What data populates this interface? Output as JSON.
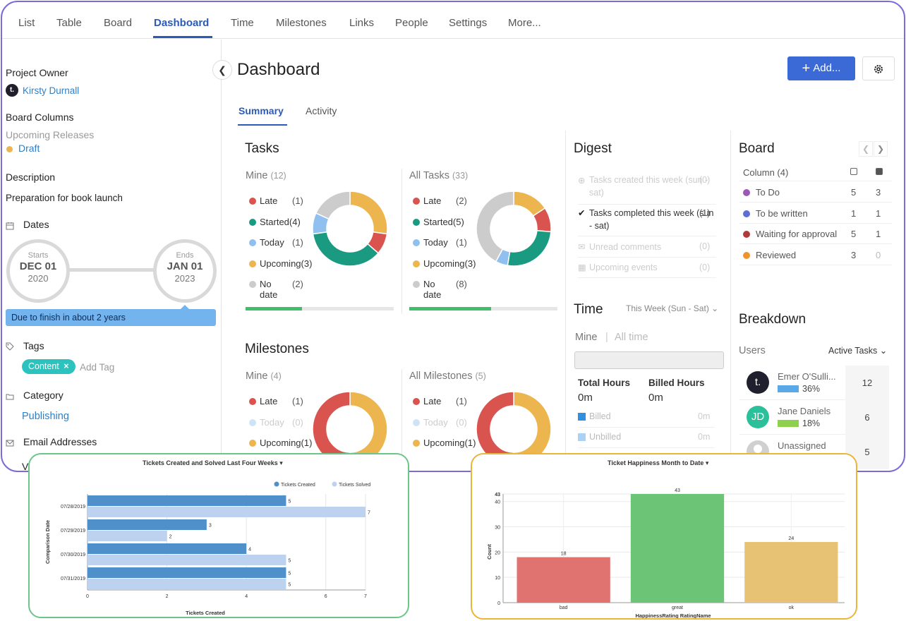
{
  "nav": {
    "tabs": [
      "List",
      "Table",
      "Board",
      "Dashboard",
      "Time",
      "Milestones",
      "Links",
      "People",
      "Settings",
      "More..."
    ],
    "active": "Dashboard"
  },
  "sidebar": {
    "project_owner_label": "Project Owner",
    "owner_name": "Kirsty Durnall",
    "board_columns_label": "Board Columns",
    "board_columns_value": "Upcoming Releases",
    "draft": "Draft",
    "description_label": "Description",
    "description": "Preparation for book launch",
    "dates_label": "Dates",
    "start": {
      "label": "Starts",
      "date": "DEC 01",
      "year": "2020"
    },
    "end": {
      "label": "Ends",
      "date": "JAN 01",
      "year": "2023"
    },
    "due_tooltip": "Due to finish in about 2 years",
    "tags_label": "Tags",
    "tag": "Content",
    "add_tag": "Add Tag",
    "category_label": "Category",
    "category": "Publishing",
    "email_label": "Email Addresses",
    "view_partial": "Vi"
  },
  "header": {
    "title": "Dashboard",
    "add_label": "Add...",
    "subtabs": [
      "Summary",
      "Activity"
    ]
  },
  "tasks": {
    "title": "Tasks",
    "mine": {
      "label": "Mine",
      "count": "(12)",
      "items": [
        {
          "label": "Late",
          "count": "(1)",
          "value": 1,
          "color": "#d9534f"
        },
        {
          "label": "Started",
          "count": "(4)",
          "value": 4,
          "color": "#1a9a80"
        },
        {
          "label": "Today",
          "count": "(1)",
          "value": 1,
          "color": "#8fc0f0"
        },
        {
          "label": "Upcoming",
          "count": "(3)",
          "value": 3,
          "color": "#ecb54e"
        },
        {
          "label": "No date",
          "count": "(2)",
          "value": 2,
          "color": "#cccccc"
        }
      ],
      "progress": 0.38
    },
    "all": {
      "label": "All Tasks",
      "count": "(33)",
      "items": [
        {
          "label": "Late",
          "count": "(2)",
          "value": 2,
          "color": "#d9534f"
        },
        {
          "label": "Started",
          "count": "(5)",
          "value": 5,
          "color": "#1a9a80"
        },
        {
          "label": "Today",
          "count": "(1)",
          "value": 1,
          "color": "#8fc0f0"
        },
        {
          "label": "Upcoming",
          "count": "(3)",
          "value": 3,
          "color": "#ecb54e"
        },
        {
          "label": "No date",
          "count": "(8)",
          "value": 8,
          "color": "#cccccc"
        }
      ],
      "progress": 0.55
    }
  },
  "milestones": {
    "title": "Milestones",
    "mine": {
      "label": "Mine",
      "count": "(4)",
      "items": [
        {
          "label": "Late",
          "count": "(1)",
          "value": 1,
          "color": "#d9534f"
        },
        {
          "label": "Today",
          "count": "(0)",
          "value": 0,
          "color": "#cfe3f7"
        },
        {
          "label": "Upcoming",
          "count": "(1)",
          "value": 1,
          "color": "#ecb54e"
        }
      ]
    },
    "all": {
      "label": "All Milestones",
      "count": "(5)",
      "items": [
        {
          "label": "Late",
          "count": "(1)",
          "value": 1,
          "color": "#d9534f"
        },
        {
          "label": "Today",
          "count": "(0)",
          "value": 0,
          "color": "#cfe3f7"
        },
        {
          "label": "Upcoming",
          "count": "(1)",
          "value": 1,
          "color": "#ecb54e"
        }
      ]
    }
  },
  "digest": {
    "title": "Digest",
    "rows": [
      {
        "label": "Tasks created this week (sun - sat)",
        "count": "(0)",
        "active": false
      },
      {
        "label": "Tasks completed this week (sun - sat)",
        "count": "(1)",
        "active": true
      },
      {
        "label": "Unread comments",
        "count": "(0)",
        "active": false
      },
      {
        "label": "Upcoming events",
        "count": "(0)",
        "active": false
      }
    ]
  },
  "time": {
    "title": "Time",
    "filter": "This Week (Sun - Sat)",
    "tabs": [
      "Mine",
      "All time"
    ],
    "total_label": "Total Hours",
    "total_value": "0m",
    "billed_label": "Billed Hours",
    "billed_value": "0m",
    "rows": [
      {
        "label": "Billed",
        "value": "0m",
        "color": "#2f8fe0"
      },
      {
        "label": "Unbilled",
        "value": "0m",
        "color": "#a9d2f5"
      }
    ]
  },
  "board": {
    "title": "Board",
    "column_header": "Column (4)",
    "rows": [
      {
        "label": "To Do",
        "n1": "5",
        "n2": "3",
        "color": "#9b59b6"
      },
      {
        "label": "To be written",
        "n1": "1",
        "n2": "1",
        "color": "#5b6fd6"
      },
      {
        "label": "Waiting for approval",
        "n1": "5",
        "n2": "1",
        "color": "#b03a3a"
      },
      {
        "label": "Reviewed",
        "n1": "3",
        "n2": "0",
        "color": "#f0932b"
      }
    ]
  },
  "breakdown": {
    "title": "Breakdown",
    "users_label": "Users",
    "filter": "Active Tasks",
    "users": [
      {
        "initials": "t.",
        "name": "Emer O'Sulli...",
        "pct": "36%",
        "count": "12",
        "avatar_color": "#1f1f2e",
        "bar_color": "#5aa9e6"
      },
      {
        "initials": "JD",
        "name": "Jane Daniels",
        "pct": "18%",
        "count": "6",
        "avatar_color": "#2bbf9a",
        "bar_color": "#8fd14f"
      },
      {
        "initials": "",
        "name": "Unassigned",
        "pct": "",
        "count": "5",
        "avatar_color": "#9a9a9a",
        "bar_color": "#cccccc"
      }
    ]
  },
  "chart_data": [
    {
      "type": "bar",
      "orientation": "horizontal",
      "title": "Tickets Created and Solved Last Four Weeks",
      "categories": [
        "07/28/2019",
        "07/29/2019",
        "07/30/2019",
        "07/31/2019"
      ],
      "series": [
        {
          "name": "Tickets Created",
          "values": [
            5,
            3,
            4,
            5
          ],
          "color": "#4f8fca"
        },
        {
          "name": "Tickets Solved",
          "values": [
            7,
            2,
            5,
            5
          ],
          "color": "#bcd2ee"
        }
      ],
      "xlabel": "Tickets Created",
      "ylabel": "Comparison Date",
      "xlim": [
        0,
        7
      ],
      "xticks": [
        0,
        2,
        4,
        6,
        7
      ],
      "legend": "top-right"
    },
    {
      "type": "bar",
      "title": "Ticket Happiness Month to Date",
      "categories": [
        "bad",
        "great",
        "ok"
      ],
      "values": [
        18,
        43,
        24
      ],
      "colors": [
        "#e0736f",
        "#6cc576",
        "#e8c274"
      ],
      "xlabel": "HappinessRating RatingName",
      "ylabel": "Count",
      "ylim": [
        0,
        43
      ],
      "yticks": [
        0,
        10,
        20,
        30,
        40,
        43
      ]
    }
  ]
}
